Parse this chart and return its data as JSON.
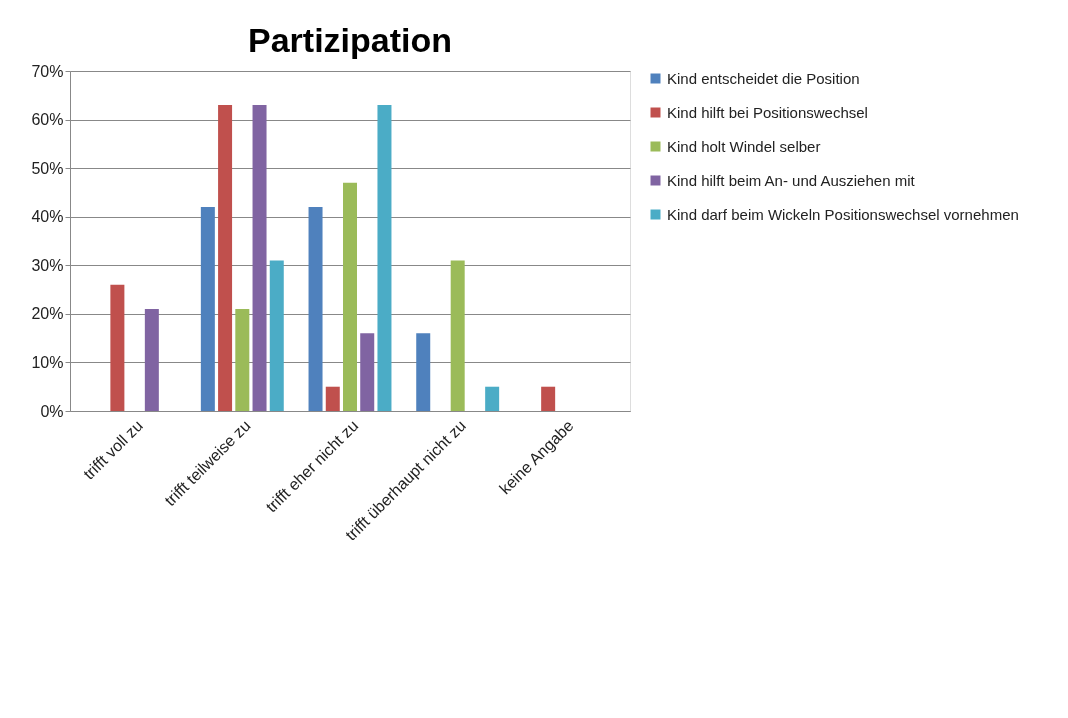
{
  "chart_data": {
    "type": "bar",
    "title": "Partizipation",
    "categories": [
      "trifft voll zu",
      "trifft teilweise zu",
      "trifft eher nicht zu",
      "trifft überhaupt nicht zu",
      "keine Angabe"
    ],
    "series": [
      {
        "name": "Kind entscheidet die Position",
        "color": "#4f81bd",
        "values": [
          0,
          42,
          42,
          16,
          0
        ]
      },
      {
        "name": "Kind hilft bei Positionswechsel",
        "color": "#c0504d",
        "values": [
          26,
          63,
          5,
          0,
          5
        ]
      },
      {
        "name": "Kind holt Windel selber",
        "color": "#9bbb59",
        "values": [
          0,
          21,
          47,
          31,
          0
        ]
      },
      {
        "name": "Kind hilft beim An- und Ausziehen mit",
        "color": "#8064a2",
        "values": [
          21,
          63,
          16,
          0,
          0
        ]
      },
      {
        "name": "Kind darf beim Wickeln Positionswechsel vornehmen",
        "color": "#4bacc6",
        "values": [
          0,
          31,
          63,
          5,
          0
        ]
      }
    ],
    "ylim": [
      0,
      70
    ],
    "yticks": [
      {
        "value": 0,
        "label": "0%"
      },
      {
        "value": 10,
        "label": "10%"
      },
      {
        "value": 20,
        "label": "20%"
      },
      {
        "value": 30,
        "label": "30%"
      },
      {
        "value": 40,
        "label": "40%"
      },
      {
        "value": 50,
        "label": "50%"
      },
      {
        "value": 60,
        "label": "60%"
      },
      {
        "value": 70,
        "label": "70%"
      }
    ],
    "grid": "y",
    "legend": "right"
  }
}
